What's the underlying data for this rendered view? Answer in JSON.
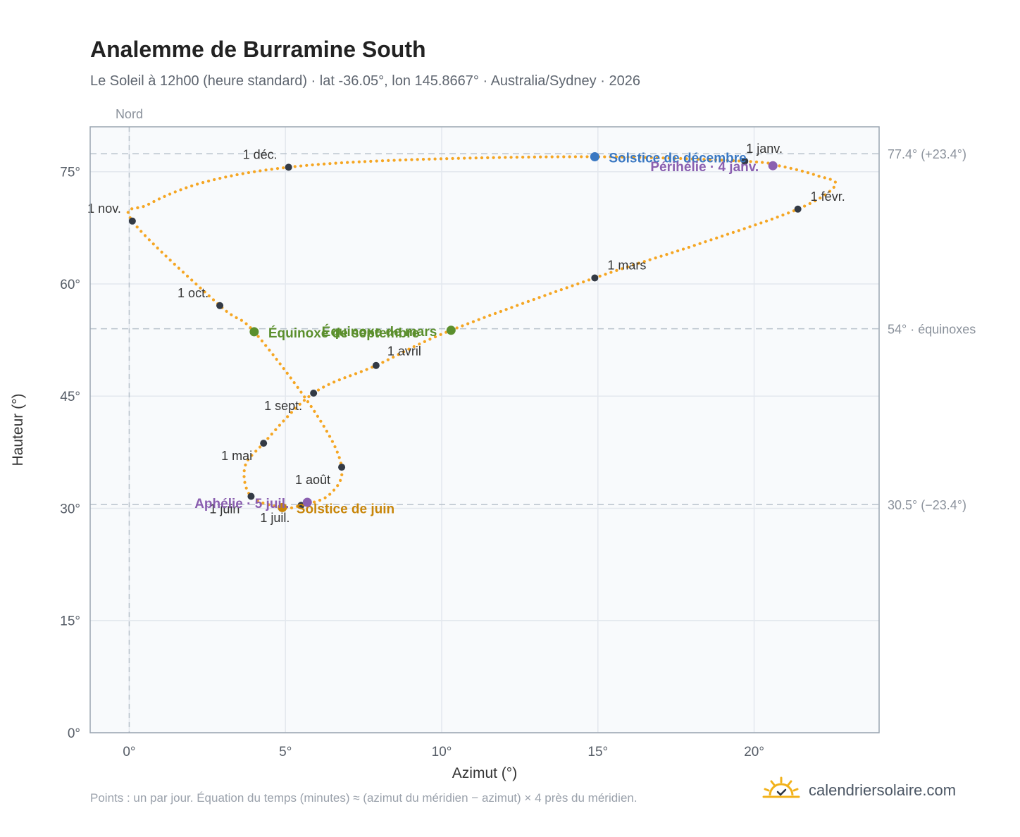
{
  "header": {
    "title": "Analemme de Burramine South",
    "subtitle": "Le Soleil à 12h00 (heure standard) · lat -36.05°, lon 145.8667° · Australia/Sydney · 2026"
  },
  "footer": {
    "note": "Points : un par jour. Équation du temps (minutes) ≈ (azimut du méridien − azimut) × 4 près du méridien.",
    "brand": "calendriersolaire.com"
  },
  "colors": {
    "path": "#f5a623",
    "month_marker": "#333a45",
    "december_solstice": "#3a78c2",
    "june_solstice": "#c8860a",
    "equinox": "#5b8f2d",
    "apsis": "#8a5fb0",
    "plot_background": "#f8fafc",
    "grid": "#e3e8ee",
    "reference_line": "#b8c2cc"
  },
  "chart_data": {
    "type": "scatter",
    "xlabel": "Azimut (°)",
    "ylabel": "Hauteur (°)",
    "xlim": [
      -1.25,
      24
    ],
    "ylim": [
      0,
      81
    ],
    "x_ticks": [
      {
        "value": 0,
        "label": "0°"
      },
      {
        "value": 5,
        "label": "5°"
      },
      {
        "value": 10,
        "label": "10°"
      },
      {
        "value": 15,
        "label": "15°"
      },
      {
        "value": 20,
        "label": "20°"
      }
    ],
    "y_ticks": [
      {
        "value": 0,
        "label": "0°"
      },
      {
        "value": 15,
        "label": "15°"
      },
      {
        "value": 30,
        "label": "30°"
      },
      {
        "value": 45,
        "label": "45°"
      },
      {
        "value": 60,
        "label": "60°"
      },
      {
        "value": 75,
        "label": "75°"
      }
    ],
    "grid": true,
    "north_reference": {
      "x": 0,
      "label": "Nord"
    },
    "reference_lines": [
      {
        "y": 77.4,
        "label": "77.4° (+23.4°)"
      },
      {
        "y": 54.0,
        "label": "54° · équinoxes"
      },
      {
        "y": 30.5,
        "label": "30.5° (−23.4°)"
      }
    ],
    "analemma_path": [
      {
        "x": 19.7,
        "y": 76.4
      },
      {
        "x": 20.9,
        "y": 75.7
      },
      {
        "x": 22.0,
        "y": 74.5
      },
      {
        "x": 22.6,
        "y": 73.2
      },
      {
        "x": 21.4,
        "y": 70.0
      },
      {
        "x": 18.2,
        "y": 65.3
      },
      {
        "x": 14.9,
        "y": 60.8
      },
      {
        "x": 10.3,
        "y": 53.8
      },
      {
        "x": 7.9,
        "y": 49.1
      },
      {
        "x": 5.9,
        "y": 45.4
      },
      {
        "x": 4.3,
        "y": 38.7
      },
      {
        "x": 3.7,
        "y": 35.5
      },
      {
        "x": 3.9,
        "y": 31.6
      },
      {
        "x": 4.9,
        "y": 30.1
      },
      {
        "x": 5.5,
        "y": 30.4
      },
      {
        "x": 6.4,
        "y": 31.8
      },
      {
        "x": 6.8,
        "y": 35.5
      },
      {
        "x": 6.0,
        "y": 42.5
      },
      {
        "x": 4.0,
        "y": 53.6
      },
      {
        "x": 2.9,
        "y": 57.1
      },
      {
        "x": 0.1,
        "y": 68.4
      },
      {
        "x": 0.6,
        "y": 70.6
      },
      {
        "x": 2.4,
        "y": 73.6
      },
      {
        "x": 5.1,
        "y": 75.6
      },
      {
        "x": 9.0,
        "y": 76.6
      },
      {
        "x": 14.9,
        "y": 77.0
      },
      {
        "x": 19.7,
        "y": 76.4
      }
    ],
    "month_markers": [
      {
        "x": 19.7,
        "y": 76.4,
        "label": "1 janv."
      },
      {
        "x": 21.4,
        "y": 70.0,
        "label": "1 févr."
      },
      {
        "x": 14.9,
        "y": 60.8,
        "label": "1 mars"
      },
      {
        "x": 7.9,
        "y": 49.1,
        "label": "1 avril"
      },
      {
        "x": 4.3,
        "y": 38.7,
        "label": "1 mai"
      },
      {
        "x": 3.9,
        "y": 31.6,
        "label": "1 juin"
      },
      {
        "x": 5.5,
        "y": 30.4,
        "label": "1 juil."
      },
      {
        "x": 6.8,
        "y": 35.5,
        "label": "1 août"
      },
      {
        "x": 5.9,
        "y": 45.4,
        "label": "1 sept."
      },
      {
        "x": 2.9,
        "y": 57.1,
        "label": "1 oct."
      },
      {
        "x": 0.1,
        "y": 68.4,
        "label": "1 nov."
      },
      {
        "x": 5.1,
        "y": 75.6,
        "label": "1 déc."
      }
    ],
    "events": [
      {
        "x": 14.9,
        "y": 77.0,
        "label": "Solstice de décembre",
        "color": "#3a78c2"
      },
      {
        "x": 20.6,
        "y": 75.8,
        "label": "Périhélie · 4 janv.",
        "color": "#8a5fb0"
      },
      {
        "x": 10.3,
        "y": 53.8,
        "label": "Équinoxe de mars",
        "color": "#5b8f2d"
      },
      {
        "x": 4.0,
        "y": 53.6,
        "label": "Équinoxe de septembre",
        "color": "#5b8f2d"
      },
      {
        "x": 4.9,
        "y": 30.1,
        "label": "Solstice de juin",
        "color": "#c8860a"
      },
      {
        "x": 5.7,
        "y": 30.8,
        "label": "Aphélie · 5 juil.",
        "color": "#8a5fb0"
      }
    ]
  }
}
